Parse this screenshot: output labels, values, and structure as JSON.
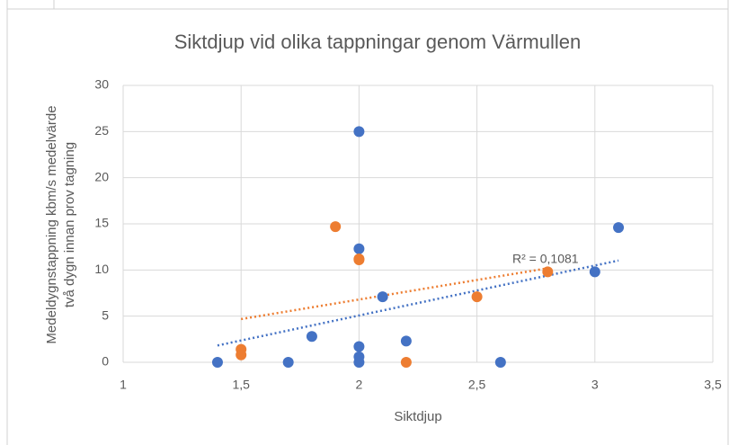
{
  "chart_data": {
    "type": "scatter",
    "title": "Siktdjup vid olika tappningar genom Värmullen",
    "xlabel": "Siktdjup",
    "ylabel": [
      "Medeldygnstappning kbm/s medelvärde",
      "två dygn innan prov tagning"
    ],
    "annotation": "R² = 0,1081",
    "xlim": [
      1,
      3.5
    ],
    "xticks": [
      1,
      {
        "value": 1.5,
        "label": "1,5"
      },
      2,
      {
        "value": 2.5,
        "label": "2,5"
      },
      3,
      {
        "value": 3.5,
        "label": "3,5"
      }
    ],
    "ylim": [
      0,
      30
    ],
    "yticks": [
      0,
      5,
      10,
      15,
      20,
      25,
      30
    ],
    "grid": true,
    "trendline": true,
    "series": [
      {
        "color": "#4472c4",
        "x": [
          1.4,
          1.7,
          1.8,
          2,
          2,
          2,
          2,
          2,
          2.1,
          2.2,
          2.6,
          3,
          3.1
        ],
        "values": [
          0,
          0,
          2.8,
          25,
          12.3,
          1.7,
          0.6,
          0,
          7.1,
          2.3,
          0,
          9.8,
          14.6
        ]
      },
      {
        "color": "#ed7d31",
        "x": [
          1.5,
          1.5,
          1.9,
          2,
          2,
          2.2,
          2.5,
          2.8
        ],
        "values": [
          1.4,
          0.8,
          14.7,
          11.2,
          11.1,
          0,
          7.1,
          9.8
        ]
      }
    ]
  }
}
